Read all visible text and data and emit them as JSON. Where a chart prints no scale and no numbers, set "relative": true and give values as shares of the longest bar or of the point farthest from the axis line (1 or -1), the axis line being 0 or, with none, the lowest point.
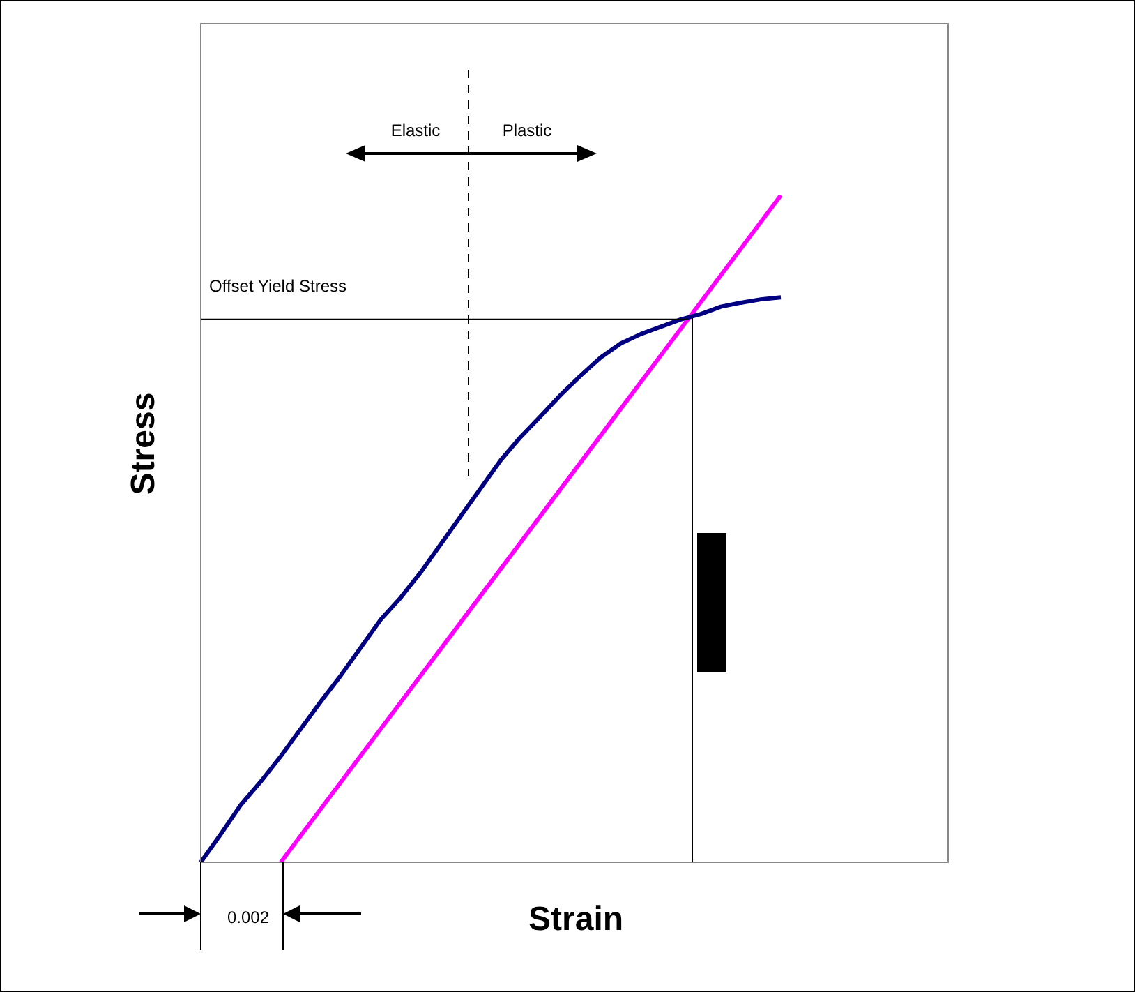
{
  "chart_data": {
    "type": "line",
    "relative": true,
    "xlabel": "Strain",
    "ylabel": "Stress",
    "categories": [
      null,
      null,
      null,
      null,
      null,
      null,
      null,
      null,
      null,
      null,
      null,
      null,
      null,
      null,
      null,
      null,
      null,
      null,
      null,
      null,
      null,
      null,
      null,
      null,
      null,
      null,
      null,
      null,
      null,
      null
    ],
    "series": [
      {
        "color": "#000080",
        "values": [
          0,
          0.042,
          0.086,
          0.121,
          0.159,
          0.2,
          0.241,
          0.28,
          0.322,
          0.364,
          0.397,
          0.435,
          0.477,
          0.519,
          0.561,
          0.603,
          0.638,
          0.669,
          0.701,
          0.73,
          0.757,
          0.778,
          0.792,
          0.803,
          0.814,
          0.822,
          0.833,
          0.839,
          0.844,
          0.847
        ]
      },
      {
        "color": "#ff00ff",
        "values": [
          null,
          null,
          null,
          null,
          0,
          0.04,
          0.08,
          0.12,
          0.16,
          0.2,
          0.24,
          0.28,
          0.32,
          0.36,
          0.4,
          0.44,
          0.48,
          0.52,
          0.56,
          0.6,
          0.64,
          0.68,
          0.72,
          0.76,
          0.8,
          0.84,
          0.88,
          0.92,
          0.96,
          1
        ]
      }
    ],
    "ref_lines": [
      {
        "axis": "y",
        "value": 0.814,
        "label": "Offset Yield Stress"
      }
    ],
    "annotations": [
      "Elastic",
      "Plastic",
      "0.002"
    ]
  }
}
